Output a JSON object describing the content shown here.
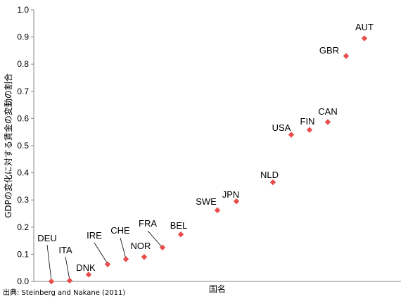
{
  "chart_data": {
    "type": "scatter",
    "title": "",
    "xlabel": "国名",
    "ylabel": "GDPの変化に対する賃金の変動の割合",
    "ylim": [
      0,
      1.0
    ],
    "yticks": [
      "0.0",
      "0.1",
      "0.2",
      "0.3",
      "0.4",
      "0.5",
      "0.6",
      "0.7",
      "0.8",
      "0.9",
      "1.0"
    ],
    "grid": false,
    "legend": "none",
    "marker": "diamond",
    "marker_color": "#E84C4C",
    "points": [
      {
        "label": "DEU",
        "y": 0.0
      },
      {
        "label": "ITA",
        "y": 0.003
      },
      {
        "label": "DNK",
        "y": 0.025
      },
      {
        "label": "IRE",
        "y": 0.063
      },
      {
        "label": "CHE",
        "y": 0.082
      },
      {
        "label": "NOR",
        "y": 0.09
      },
      {
        "label": "FRA",
        "y": 0.125
      },
      {
        "label": "BEL",
        "y": 0.173
      },
      {
        "label": "SWE",
        "y": 0.262
      },
      {
        "label": "JPN",
        "y": 0.295
      },
      {
        "label": "NLD",
        "y": 0.365
      },
      {
        "label": "USA",
        "y": 0.54
      },
      {
        "label": "FIN",
        "y": 0.558
      },
      {
        "label": "CAN",
        "y": 0.587
      },
      {
        "label": "GBR",
        "y": 0.83
      },
      {
        "label": "AUT",
        "y": 0.895
      }
    ]
  },
  "source": "出典: Steinberg and Nakane (2011)"
}
